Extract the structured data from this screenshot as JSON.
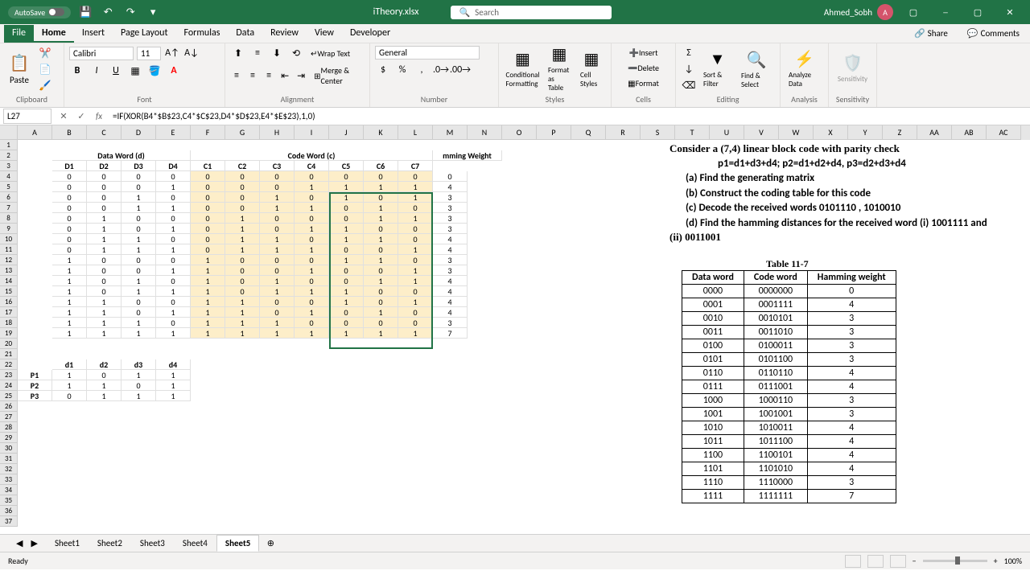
{
  "titlebar": {
    "autosave": "AutoSave",
    "filename": "iTheory.xlsx",
    "search_placeholder": "Search",
    "username": "Ahmed_Sobh",
    "avatar_initial": "A"
  },
  "menu": {
    "tabs": [
      "File",
      "Home",
      "Insert",
      "Page Layout",
      "Formulas",
      "Data",
      "Review",
      "View",
      "Developer"
    ],
    "active": 1,
    "share": "Share",
    "comments": "Comments"
  },
  "ribbon": {
    "clipboard": "Clipboard",
    "paste": "Paste",
    "font": "Font",
    "font_name": "Calibri",
    "font_size": "11",
    "alignment": "Alignment",
    "wrap": "Wrap Text",
    "merge": "Merge & Center",
    "number": "Number",
    "number_format": "General",
    "styles": "Styles",
    "cond_format": "Conditional Formatting",
    "format_table": "Format as Table",
    "cell_styles": "Cell Styles",
    "cells": "Cells",
    "insert": "Insert",
    "delete": "Delete",
    "format": "Format",
    "editing": "Editing",
    "sort_filter": "Sort & Filter",
    "find_select": "Find & Select",
    "analysis": "Analysis",
    "analyze": "Analyze Data",
    "sensitivity": "Sensitivity",
    "sensitivity_label": "Sensitivity"
  },
  "formula_bar": {
    "cell_ref": "L27",
    "formula": "=IF(XOR(B4*$B$23,C4*$C$23,D4*$D$23,E4*$E$23),1,0)"
  },
  "columns": [
    "A",
    "B",
    "C",
    "D",
    "E",
    "F",
    "G",
    "H",
    "I",
    "J",
    "K",
    "L",
    "M",
    "N",
    "O",
    "P",
    "Q",
    "R",
    "S",
    "T",
    "U",
    "V",
    "W",
    "X",
    "Y",
    "Z",
    "AA",
    "AB",
    "AC"
  ],
  "row_count": 37,
  "headers": {
    "data_word": "Data Word (d)",
    "code_word": "Code Word (c)",
    "hamming": "mming Weight",
    "d_labels": [
      "D1",
      "D2",
      "D3",
      "D4"
    ],
    "c_labels": [
      "C1",
      "C2",
      "C3",
      "C4",
      "C5",
      "C6",
      "C7"
    ]
  },
  "data_rows": [
    {
      "d": [
        0,
        0,
        0,
        0
      ],
      "c": [
        0,
        0,
        0,
        0,
        0,
        0,
        0
      ],
      "h": 0
    },
    {
      "d": [
        0,
        0,
        0,
        1
      ],
      "c": [
        0,
        0,
        0,
        1,
        1,
        1,
        1
      ],
      "h": 4
    },
    {
      "d": [
        0,
        0,
        1,
        0
      ],
      "c": [
        0,
        0,
        1,
        0,
        1,
        0,
        1
      ],
      "h": 3
    },
    {
      "d": [
        0,
        0,
        1,
        1
      ],
      "c": [
        0,
        0,
        1,
        1,
        0,
        1,
        0
      ],
      "h": 3
    },
    {
      "d": [
        0,
        1,
        0,
        0
      ],
      "c": [
        0,
        1,
        0,
        0,
        0,
        1,
        1
      ],
      "h": 3
    },
    {
      "d": [
        0,
        1,
        0,
        1
      ],
      "c": [
        0,
        1,
        0,
        1,
        1,
        0,
        0
      ],
      "h": 3
    },
    {
      "d": [
        0,
        1,
        1,
        0
      ],
      "c": [
        0,
        1,
        1,
        0,
        1,
        1,
        0
      ],
      "h": 4
    },
    {
      "d": [
        0,
        1,
        1,
        1
      ],
      "c": [
        0,
        1,
        1,
        1,
        0,
        0,
        1
      ],
      "h": 4
    },
    {
      "d": [
        1,
        0,
        0,
        0
      ],
      "c": [
        1,
        0,
        0,
        0,
        1,
        1,
        0
      ],
      "h": 3
    },
    {
      "d": [
        1,
        0,
        0,
        1
      ],
      "c": [
        1,
        0,
        0,
        1,
        0,
        0,
        1
      ],
      "h": 3
    },
    {
      "d": [
        1,
        0,
        1,
        0
      ],
      "c": [
        1,
        0,
        1,
        0,
        0,
        1,
        1
      ],
      "h": 4
    },
    {
      "d": [
        1,
        0,
        1,
        1
      ],
      "c": [
        1,
        0,
        1,
        1,
        1,
        0,
        0
      ],
      "h": 4
    },
    {
      "d": [
        1,
        1,
        0,
        0
      ],
      "c": [
        1,
        1,
        0,
        0,
        1,
        0,
        1
      ],
      "h": 4
    },
    {
      "d": [
        1,
        1,
        0,
        1
      ],
      "c": [
        1,
        1,
        0,
        1,
        0,
        1,
        0
      ],
      "h": 4
    },
    {
      "d": [
        1,
        1,
        1,
        0
      ],
      "c": [
        1,
        1,
        1,
        0,
        0,
        0,
        0
      ],
      "h": 3
    },
    {
      "d": [
        1,
        1,
        1,
        1
      ],
      "c": [
        1,
        1,
        1,
        1,
        1,
        1,
        1
      ],
      "h": 7
    }
  ],
  "parity_headers": [
    "d1",
    "d2",
    "d3",
    "d4"
  ],
  "parity_rows": [
    {
      "label": "P1",
      "vals": [
        1,
        0,
        1,
        1
      ]
    },
    {
      "label": "P2",
      "vals": [
        1,
        1,
        0,
        1
      ]
    },
    {
      "label": "P3",
      "vals": [
        0,
        1,
        1,
        1
      ]
    }
  ],
  "problem": {
    "line1": "Consider a (7,4) linear block code with parity check",
    "line2": "p1=d1+d3+d4;    p2=d1+d2+d4,    p3=d2+d3+d4",
    "a": "(a) Find the generating matrix",
    "b": "(b) Construct the coding table for this code",
    "c": "(c) Decode the received words 0101110 , 1010010",
    "d": "(d) Find the hamming distances for the received word (i) 1001111 and",
    "d2": "(ii) 0011001"
  },
  "ref_table": {
    "title": "Table 11-7",
    "headers": [
      "Data word",
      "Code word",
      "Hamming weight"
    ],
    "rows": [
      [
        "0000",
        "0000000",
        "0"
      ],
      [
        "0001",
        "0001111",
        "4"
      ],
      [
        "0010",
        "0010101",
        "3"
      ],
      [
        "0011",
        "0011010",
        "3"
      ],
      [
        "0100",
        "0100011",
        "3"
      ],
      [
        "0101",
        "0101100",
        "3"
      ],
      [
        "0110",
        "0110110",
        "4"
      ],
      [
        "0111",
        "0111001",
        "4"
      ],
      [
        "1000",
        "1000110",
        "3"
      ],
      [
        "1001",
        "1001001",
        "3"
      ],
      [
        "1010",
        "1010011",
        "4"
      ],
      [
        "1011",
        "1011100",
        "4"
      ],
      [
        "1100",
        "1100101",
        "4"
      ],
      [
        "1101",
        "1101010",
        "4"
      ],
      [
        "1110",
        "1110000",
        "3"
      ],
      [
        "1111",
        "1111111",
        "7"
      ]
    ]
  },
  "sheets": [
    "Sheet1",
    "Sheet2",
    "Sheet3",
    "Sheet4",
    "Sheet5"
  ],
  "active_sheet": 4,
  "statusbar": {
    "ready": "Ready",
    "zoom": "100%"
  },
  "colors": {
    "excel_green": "#217346",
    "highlight": "#fdeec9",
    "ribbon_bg": "#f3f2f1",
    "border": "#d0d0d0"
  }
}
